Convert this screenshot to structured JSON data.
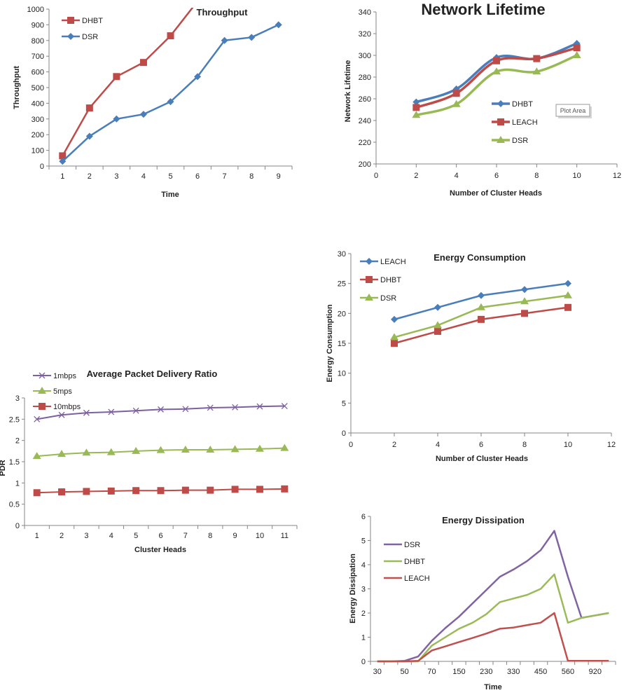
{
  "tooltip": "Plot Area",
  "chart_data": [
    {
      "type": "line",
      "title": "Throughput",
      "xlabel": "Time",
      "ylabel": "Throughput",
      "categories": [
        "1",
        "2",
        "3",
        "4",
        "5",
        "6",
        "7",
        "8",
        "9"
      ],
      "ylim": [
        0,
        1000
      ],
      "ystep": 100,
      "grid": false,
      "legend": "top-left",
      "series": [
        {
          "name": "DHBT",
          "color": "#be4b48",
          "marker": "square",
          "values": [
            65,
            370,
            570,
            660,
            830,
            1050,
            null,
            null,
            null
          ]
        },
        {
          "name": "DSR",
          "color": "#4a7ebb",
          "marker": "diamond",
          "values": [
            30,
            190,
            300,
            330,
            410,
            570,
            800,
            820,
            900
          ]
        }
      ]
    },
    {
      "type": "line",
      "title": "Network Lifetime",
      "xlabel": "Number of Cluster Heads",
      "ylabel": "Network  Lifetime",
      "x": [
        2,
        4,
        6,
        8,
        10
      ],
      "xlim": [
        0,
        12
      ],
      "xstep": 2,
      "ylim": [
        200,
        340
      ],
      "ystep": 20,
      "grid": false,
      "legend": "center",
      "smooth": true,
      "series": [
        {
          "name": "DHBT",
          "color": "#4a7ebb",
          "marker": "diamond",
          "values": [
            257,
            269,
            298,
            297,
            311
          ]
        },
        {
          "name": "LEACH",
          "color": "#be4b48",
          "marker": "square",
          "values": [
            252,
            265,
            295,
            297,
            307
          ]
        },
        {
          "name": "DSR",
          "color": "#98b954",
          "marker": "triangle",
          "values": [
            245,
            255,
            285,
            285,
            300
          ]
        }
      ]
    },
    {
      "type": "line",
      "title": "Average Packet Delivery Ratio",
      "xlabel": "Cluster Heads",
      "ylabel": "PDR",
      "categories": [
        "1",
        "2",
        "3",
        "4",
        "5",
        "6",
        "7",
        "8",
        "9",
        "10",
        "11"
      ],
      "ylim": [
        0,
        3
      ],
      "ystep": 0.5,
      "grid": false,
      "legend": "top-left",
      "series": [
        {
          "name": "1mbps",
          "color": "#7d60a0",
          "marker": "x",
          "values": [
            2.5,
            2.6,
            2.65,
            2.67,
            2.7,
            2.73,
            2.74,
            2.77,
            2.78,
            2.8,
            2.81
          ]
        },
        {
          "name": "5mps",
          "color": "#98b954",
          "marker": "triangle",
          "values": [
            1.63,
            1.68,
            1.71,
            1.72,
            1.75,
            1.77,
            1.78,
            1.78,
            1.79,
            1.8,
            1.82
          ]
        },
        {
          "name": "10mbps",
          "color": "#be4b48",
          "marker": "square",
          "values": [
            0.77,
            0.79,
            0.8,
            0.81,
            0.82,
            0.82,
            0.83,
            0.83,
            0.85,
            0.85,
            0.86
          ]
        }
      ]
    },
    {
      "type": "line",
      "title": "Energy Consumption",
      "xlabel": "Number of Cluster Heads",
      "ylabel": "Energy Consumption",
      "x": [
        2,
        4,
        6,
        8,
        10
      ],
      "xlim": [
        0,
        12
      ],
      "xstep": 2,
      "ylim": [
        0,
        30
      ],
      "ystep": 5,
      "grid": false,
      "legend": "top-left",
      "series": [
        {
          "name": "LEACH",
          "color": "#4a7ebb",
          "marker": "diamond",
          "values": [
            19,
            21,
            23,
            24,
            25
          ]
        },
        {
          "name": "DHBT",
          "color": "#be4b48",
          "marker": "square",
          "values": [
            15,
            17,
            19,
            20,
            21
          ]
        },
        {
          "name": "DSR",
          "color": "#98b954",
          "marker": "triangle",
          "values": [
            16,
            18,
            21,
            22,
            23
          ]
        }
      ]
    },
    {
      "type": "line",
      "title": "Energy Dissipation",
      "xlabel": "Time",
      "ylabel": "Energy Dissipation",
      "categories": [
        "30",
        "",
        "50",
        "",
        "70",
        "",
        "150",
        "",
        "230",
        "",
        "330",
        "",
        "450",
        "",
        "560",
        "",
        "920",
        ""
      ],
      "ylim": [
        0,
        6
      ],
      "ystep": 1,
      "grid": false,
      "legend": "top-left",
      "series": [
        {
          "name": "DSR",
          "color": "#8064a2",
          "marker": "none",
          "values": [
            0,
            0,
            0.02,
            0.2,
            0.85,
            1.38,
            1.85,
            2.4,
            2.95,
            3.5,
            3.8,
            4.15,
            4.6,
            5.4,
            3.5,
            1.8,
            1.9,
            2.0
          ]
        },
        {
          "name": "DHBT",
          "color": "#9bbb59",
          "marker": "none",
          "values": [
            0,
            0,
            0,
            0,
            0.65,
            1.0,
            1.35,
            1.6,
            1.95,
            2.45,
            2.6,
            2.75,
            3.0,
            3.6,
            1.6,
            1.8,
            1.9,
            2.0
          ]
        },
        {
          "name": "LEACH",
          "color": "#c0504d",
          "marker": "none",
          "values": [
            0,
            0,
            0,
            0.02,
            0.45,
            0.62,
            0.8,
            0.97,
            1.15,
            1.35,
            1.4,
            1.5,
            1.6,
            2.0,
            0.02,
            0.02,
            0.02,
            0.02
          ]
        }
      ]
    }
  ]
}
